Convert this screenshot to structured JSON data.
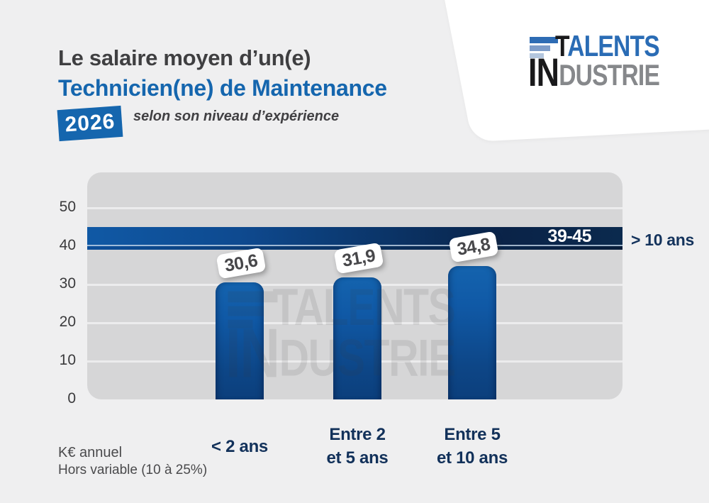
{
  "header": {
    "title_line1": "Le salaire moyen d’un(e)",
    "title_line2": "Technicien(ne) de Maintenance",
    "year_badge": "2026",
    "subtitle": "selon son niveau d’expérience"
  },
  "logo": {
    "line1_black": "T",
    "line1_blue": "ALENTS",
    "line2_black": "IN",
    "line2_gray": "DUSTRIE"
  },
  "chart_data": {
    "type": "bar",
    "title": "Le salaire moyen d’un(e) Technicien(ne) de Maintenance 2026 selon son niveau d’expérience",
    "categories": [
      "< 2 ans",
      "Entre 2\net 5 ans",
      "Entre 5\net 10 ans"
    ],
    "values": [
      30.6,
      31.9,
      34.8
    ],
    "value_labels": [
      "30,6",
      "31,9",
      "34,8"
    ],
    "band": {
      "min": 39,
      "max": 45,
      "label": "39-45",
      "category": "> 10 ans"
    },
    "yticks": [
      0,
      10,
      20,
      30,
      40,
      50
    ],
    "ylim": [
      0,
      59
    ],
    "grid": true,
    "unit_label": "K€ annuel",
    "footnote": "Hors variable (10 à 25%)",
    "legend_position": "none"
  },
  "colors": {
    "background": "#efeff0",
    "panel": "#d6d6d7",
    "accent_blue": "#1566ae",
    "bar_blue": "#1059a6",
    "band_navy": "#0a2348",
    "title_gray": "#3f3f41",
    "label_navy": "#12315a",
    "logo_black": "#19191b",
    "logo_gray": "#86888b",
    "white": "#ffffff"
  }
}
